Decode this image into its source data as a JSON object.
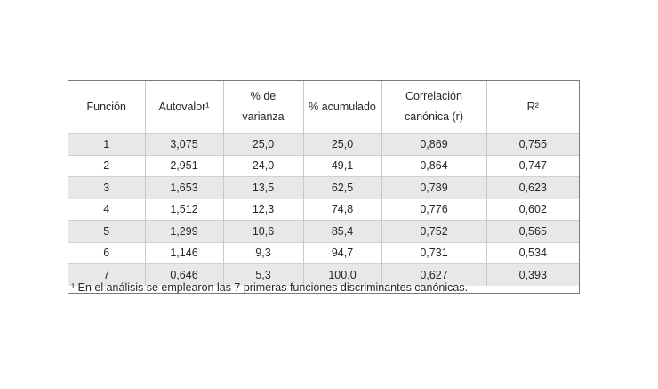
{
  "table": {
    "headers": [
      {
        "lines": [
          "Función"
        ]
      },
      {
        "lines": [
          "Autovalor¹"
        ]
      },
      {
        "lines": [
          "% de",
          "varianza"
        ]
      },
      {
        "lines": [
          "% acumulado"
        ]
      },
      {
        "lines": [
          "Correlación",
          "canónica (r)"
        ]
      },
      {
        "lines": [
          "R²"
        ]
      }
    ],
    "rows": [
      [
        "1",
        "3,075",
        "25,0",
        "25,0",
        "0,869",
        "0,755"
      ],
      [
        "2",
        "2,951",
        "24,0",
        "49,1",
        "0,864",
        "0,747"
      ],
      [
        "3",
        "1,653",
        "13,5",
        "62,5",
        "0,789",
        "0,623"
      ],
      [
        "4",
        "1,512",
        "12,3",
        "74,8",
        "0,776",
        "0,602"
      ],
      [
        "5",
        "1,299",
        "10,6",
        "85,4",
        "0,752",
        "0,565"
      ],
      [
        "6",
        "1,146",
        "9,3",
        "94,7",
        "0,731",
        "0,534"
      ],
      [
        "7",
        "0,646",
        "5,3",
        "100,0",
        "0,627",
        "0,393"
      ]
    ],
    "footnote": "¹ En el análisis se emplearon las 7 primeras funciones discriminantes canónicas."
  }
}
